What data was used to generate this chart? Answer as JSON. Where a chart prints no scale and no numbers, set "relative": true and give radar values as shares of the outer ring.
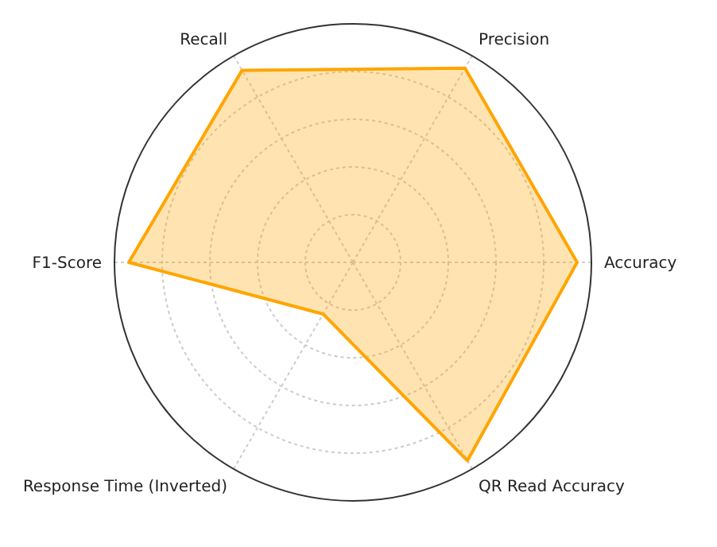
{
  "chart_data": {
    "type": "radar",
    "relative": true,
    "grid": true,
    "marker": "none",
    "categories": [
      "Precision",
      "Accuracy",
      "QR Read Accuracy",
      "Response Time (Inverted)",
      "F1-Score",
      "Recall"
    ],
    "series": [
      {
        "color": "#ffa500",
        "values": [
          0.94,
          0.94,
          0.96,
          0.25,
          0.94,
          0.93
        ]
      }
    ]
  }
}
